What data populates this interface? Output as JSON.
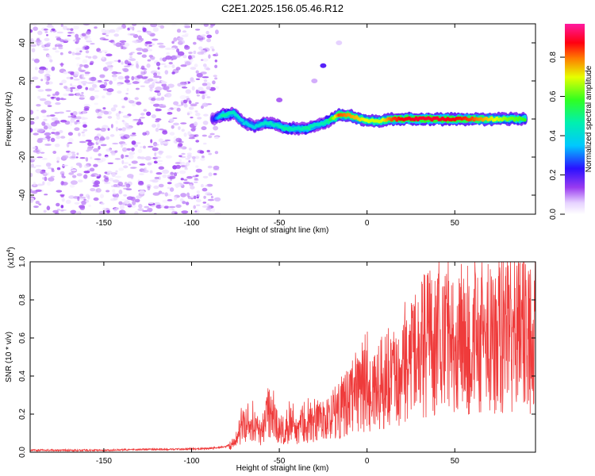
{
  "title": "C2E1.2025.156.05.46.R12",
  "chart_data": [
    {
      "type": "heatmap",
      "xlabel": "Height of straight line (km)",
      "ylabel": "Frequency (Hz)",
      "xlim": [
        -192,
        96
      ],
      "ylim": [
        -50,
        50
      ],
      "xticks": [
        -150,
        -100,
        -50,
        0,
        50
      ],
      "yticks": [
        -40,
        -20,
        0,
        20,
        40
      ],
      "colorbar": {
        "label": "Normalized spectral amplitude",
        "range": [
          0.0,
          0.97
        ],
        "ticks": [
          0.0,
          0.2,
          0.4,
          0.6,
          0.8
        ],
        "tick_labels": [
          "0.0",
          "0.2",
          "0.4",
          "0.6",
          "0.8"
        ],
        "colormap": "rainbow (white to purple, blue, cyan, green, yellow, red, magenta)"
      },
      "noise_region": {
        "x_range": [
          -192,
          -85
        ],
        "frequency_range": [
          -50,
          50
        ],
        "amplitude": 0.05
      },
      "ridge": [
        {
          "x": -88,
          "freq": 0,
          "amp": 0.2
        },
        {
          "x": -82,
          "freq": 2,
          "amp": 0.5
        },
        {
          "x": -76,
          "freq": 3,
          "amp": 0.45
        },
        {
          "x": -70,
          "freq": -2,
          "amp": 0.4
        },
        {
          "x": -64,
          "freq": -4,
          "amp": 0.4
        },
        {
          "x": -58,
          "freq": -2,
          "amp": 0.45
        },
        {
          "x": -52,
          "freq": -3,
          "amp": 0.45
        },
        {
          "x": -46,
          "freq": -5,
          "amp": 0.5
        },
        {
          "x": -40,
          "freq": -5,
          "amp": 0.45
        },
        {
          "x": -34,
          "freq": -5,
          "amp": 0.5
        },
        {
          "x": -28,
          "freq": -3,
          "amp": 0.45
        },
        {
          "x": -22,
          "freq": -1,
          "amp": 0.5
        },
        {
          "x": -16,
          "freq": 2,
          "amp": 0.85
        },
        {
          "x": -10,
          "freq": 2,
          "amp": 0.8
        },
        {
          "x": -4,
          "freq": 0,
          "amp": 0.75
        },
        {
          "x": 2,
          "freq": -1,
          "amp": 0.7
        },
        {
          "x": 8,
          "freq": -1,
          "amp": 0.7
        },
        {
          "x": 14,
          "freq": 0,
          "amp": 0.85
        },
        {
          "x": 20,
          "freq": 0,
          "amp": 0.9
        },
        {
          "x": 30,
          "freq": 0,
          "amp": 0.92
        },
        {
          "x": 40,
          "freq": 0,
          "amp": 0.92
        },
        {
          "x": 50,
          "freq": 0,
          "amp": 0.9
        },
        {
          "x": 60,
          "freq": 0,
          "amp": 0.85
        },
        {
          "x": 70,
          "freq": 0,
          "amp": 0.75
        },
        {
          "x": 80,
          "freq": 0,
          "amp": 0.65
        },
        {
          "x": 90,
          "freq": 0,
          "amp": 0.6
        }
      ],
      "faint_features": [
        {
          "x": -25,
          "freq": 28,
          "amp": 0.2
        },
        {
          "x": -50,
          "freq": 10,
          "amp": 0.12
        },
        {
          "x": -30,
          "freq": 20,
          "amp": 0.08
        },
        {
          "x": -16,
          "freq": 40,
          "amp": 0.06
        }
      ]
    },
    {
      "type": "line",
      "xlabel": "Height of straight line (km)",
      "ylabel": "SNR (10 * v/v)",
      "y_multiplier_label": "(x10",
      "y_multiplier_exponent": "4",
      "y_multiplier_close": ")",
      "xlim": [
        -192,
        96
      ],
      "ylim": [
        0.0,
        1.0
      ],
      "xticks": [
        -150,
        -100,
        -50,
        0,
        50
      ],
      "yticks": [
        0.0,
        0.2,
        0.4,
        0.6,
        0.8,
        1.0
      ],
      "ytick_labels": [
        "0.0",
        "0.2",
        "0.4",
        "0.6",
        "0.8",
        "1.0"
      ],
      "color": "#ef3b3b",
      "series": [
        {
          "x": [
            -192,
            -170,
            -150,
            -130,
            -110,
            -90,
            -80,
            -76,
            -72,
            -68,
            -64,
            -60,
            -56,
            -52,
            -48,
            -44,
            -40,
            -36,
            -32,
            -28,
            -24,
            -20,
            -16,
            -12,
            -8,
            -4,
            0,
            4,
            8,
            12,
            16,
            20,
            24,
            28,
            32,
            36,
            40,
            44,
            48,
            52,
            56,
            60,
            64,
            68,
            72,
            76,
            80,
            84,
            88,
            92,
            96
          ],
          "y": [
            0.01,
            0.01,
            0.01,
            0.015,
            0.015,
            0.02,
            0.03,
            0.06,
            0.15,
            0.22,
            0.17,
            0.14,
            0.3,
            0.18,
            0.13,
            0.19,
            0.14,
            0.2,
            0.18,
            0.24,
            0.2,
            0.26,
            0.25,
            0.33,
            0.35,
            0.4,
            0.44,
            0.4,
            0.46,
            0.45,
            0.5,
            0.52,
            0.6,
            0.65,
            0.72,
            0.74,
            0.73,
            0.76,
            0.75,
            0.77,
            0.76,
            0.78,
            0.77,
            0.8,
            0.78,
            0.79,
            0.8,
            0.79,
            0.8,
            0.8,
            0.8
          ]
        }
      ]
    }
  ]
}
